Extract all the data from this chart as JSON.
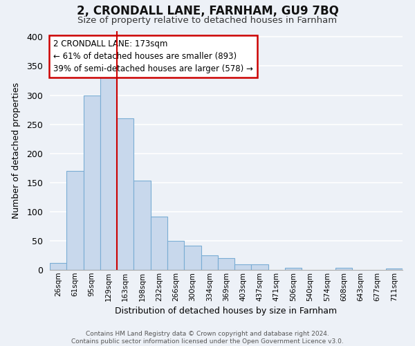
{
  "title": "2, CRONDALL LANE, FARNHAM, GU9 7BQ",
  "subtitle": "Size of property relative to detached houses in Farnham",
  "xlabel": "Distribution of detached houses by size in Farnham",
  "ylabel": "Number of detached properties",
  "categories": [
    "26sqm",
    "61sqm",
    "95sqm",
    "129sqm",
    "163sqm",
    "198sqm",
    "232sqm",
    "266sqm",
    "300sqm",
    "334sqm",
    "369sqm",
    "403sqm",
    "437sqm",
    "471sqm",
    "506sqm",
    "540sqm",
    "574sqm",
    "608sqm",
    "643sqm",
    "677sqm",
    "711sqm"
  ],
  "values": [
    12,
    170,
    300,
    330,
    260,
    153,
    92,
    50,
    42,
    25,
    20,
    10,
    10,
    0,
    4,
    0,
    0,
    3,
    0,
    0,
    2
  ],
  "bar_color": "#c8d8ec",
  "bar_edge_color": "#7aadd4",
  "vline_x": 3.5,
  "vline_color": "#cc0000",
  "annotation_title": "2 CRONDALL LANE: 173sqm",
  "annotation_line1": "← 61% of detached houses are smaller (893)",
  "annotation_line2": "39% of semi-detached houses are larger (578) →",
  "annotation_box_color": "#ffffff",
  "annotation_box_edge": "#cc0000",
  "ylim": [
    0,
    410
  ],
  "yticks": [
    0,
    50,
    100,
    150,
    200,
    250,
    300,
    350,
    400
  ],
  "footer_line1": "Contains HM Land Registry data © Crown copyright and database right 2024.",
  "footer_line2": "Contains public sector information licensed under the Open Government Licence v3.0.",
  "background_color": "#edf1f7",
  "grid_color": "#ffffff",
  "title_fontsize": 12,
  "subtitle_fontsize": 9.5,
  "footer_fontsize": 6.5
}
